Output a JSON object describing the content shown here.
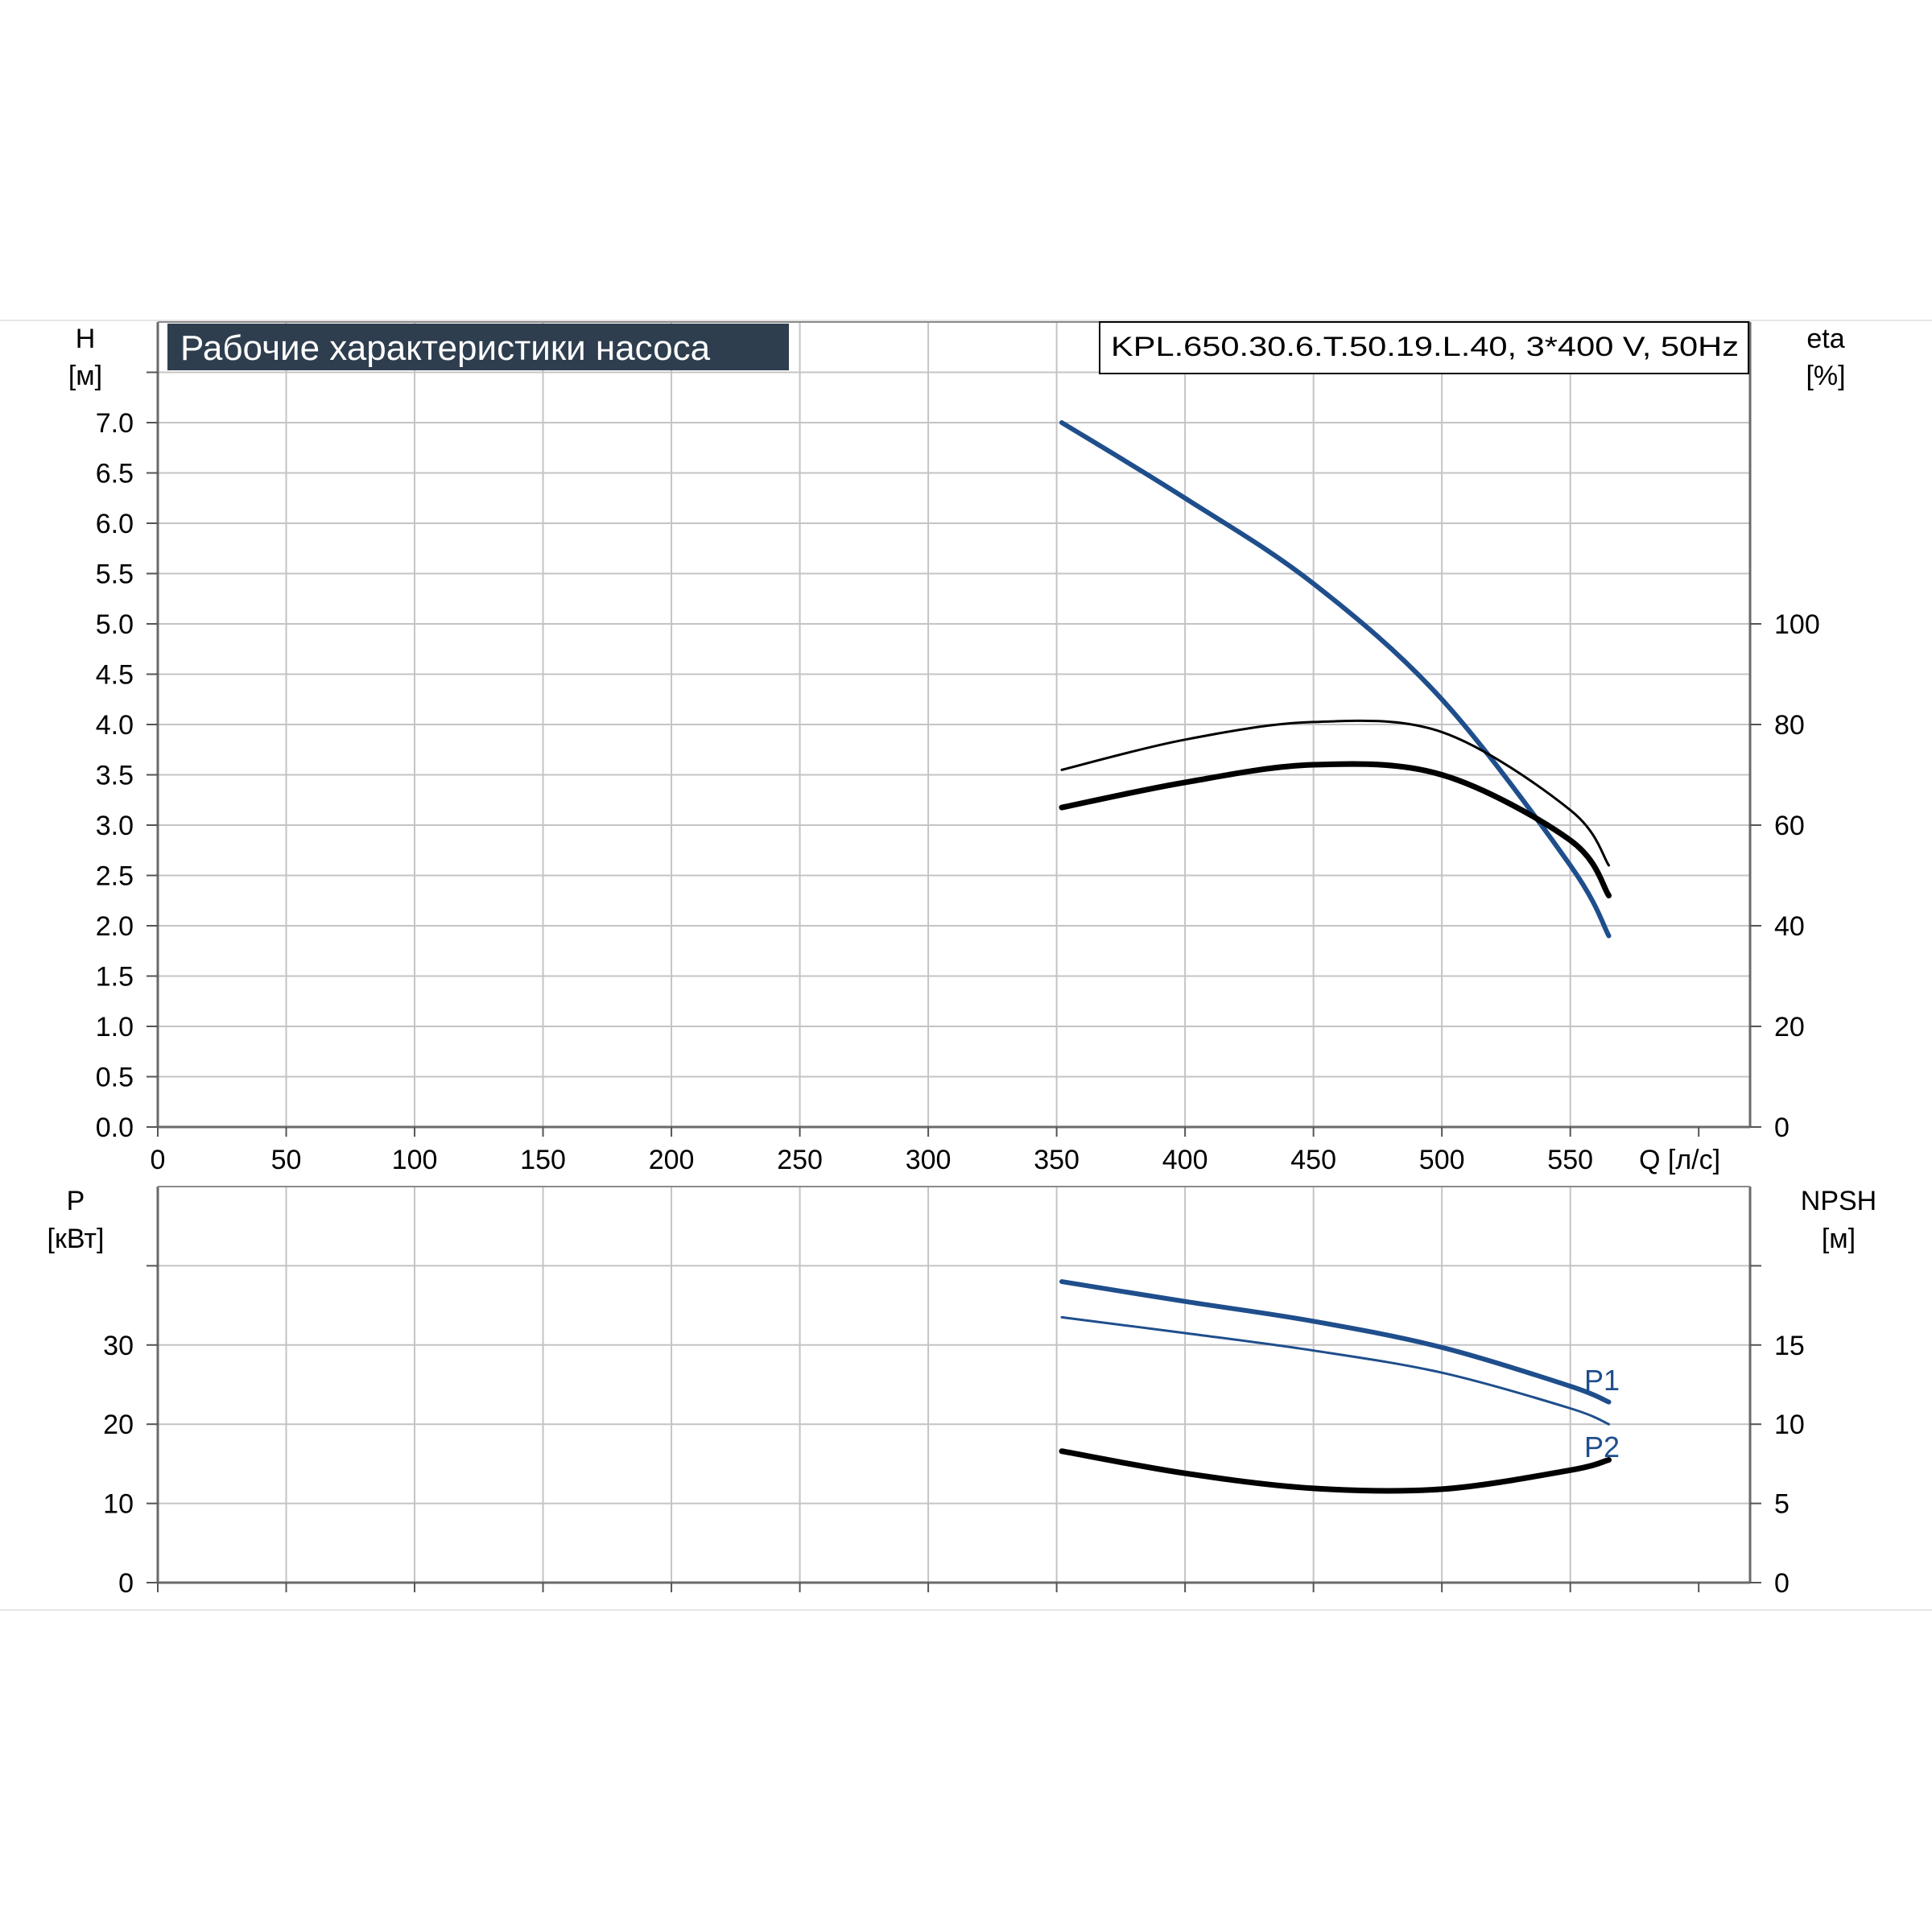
{
  "header": {
    "title": "Рабочие характеристики насоса",
    "model": "KPL.650.30.6.T.50.19.L.40, 3*400 V, 50Hz"
  },
  "colors": {
    "blue": "#1f4e8c",
    "black": "#000000",
    "grid": "#c4c4c4",
    "title_bg": "#2e3e4f",
    "title_fg": "#ffffff"
  },
  "chart_data": [
    {
      "type": "line",
      "name": "head-efficiency",
      "x_axis": {
        "label": "Q [л/с]",
        "range": [
          0,
          620
        ],
        "ticks": [
          0,
          50,
          100,
          150,
          200,
          250,
          300,
          350,
          400,
          450,
          500,
          550
        ],
        "tick_labels": [
          "0",
          "50",
          "100",
          "150",
          "200",
          "250",
          "300",
          "350",
          "400",
          "450",
          "500",
          "550"
        ]
      },
      "y_axis_left": {
        "label_line1": "H",
        "label_line2": "[м]",
        "range": [
          0,
          8.0
        ],
        "ticks": [
          0,
          0.5,
          1,
          1.5,
          2,
          2.5,
          3,
          3.5,
          4,
          4.5,
          5,
          5.5,
          6,
          6.5,
          7,
          7.5
        ],
        "tick_labels": [
          "0.0",
          "0.5",
          "1.0",
          "1.5",
          "2.0",
          "2.5",
          "3.0",
          "3.5",
          "4.0",
          "4.5",
          "5.0",
          "5.5",
          "6.0",
          "6.5",
          "7.0",
          ""
        ]
      },
      "y_axis_right": {
        "label_line1": "eta",
        "label_line2": "[%]",
        "range": [
          0,
          160
        ],
        "ticks": [
          0,
          20,
          40,
          60,
          80,
          100
        ],
        "tick_labels": [
          "0",
          "20",
          "40",
          "60",
          "80",
          "100"
        ]
      },
      "series": [
        {
          "key": "head",
          "axis": "left",
          "color": "#1f4e8c",
          "width": 6,
          "x": [
            352,
            400,
            450,
            500,
            550,
            565
          ],
          "y": [
            7.0,
            6.25,
            5.4,
            4.25,
            2.6,
            1.9
          ]
        },
        {
          "key": "eta-thin",
          "axis": "right",
          "color": "#000000",
          "width": 3,
          "x": [
            352,
            400,
            450,
            500,
            550,
            565
          ],
          "y": [
            71,
            77,
            80.5,
            78.5,
            63,
            52
          ]
        },
        {
          "key": "eta-thick",
          "axis": "right",
          "color": "#000000",
          "width": 7,
          "x": [
            352,
            400,
            450,
            500,
            550,
            565
          ],
          "y": [
            63.5,
            68.5,
            72,
            70,
            57,
            46
          ]
        }
      ],
      "grid": true
    },
    {
      "type": "line",
      "name": "power-npsh",
      "x_axis": {
        "label": "",
        "range": [
          0,
          620
        ],
        "ticks": [
          0,
          50,
          100,
          150,
          200,
          250,
          300,
          350,
          400,
          450,
          500,
          550
        ]
      },
      "y_axis_left": {
        "label_line1": "P",
        "label_line2": "[кВт]",
        "range": [
          0,
          50
        ],
        "ticks": [
          0,
          10,
          20,
          30,
          40
        ],
        "tick_labels": [
          "0",
          "10",
          "20",
          "30",
          ""
        ]
      },
      "y_axis_right": {
        "label_line1": "NPSH",
        "label_line2": "[м]",
        "range": [
          0,
          25
        ],
        "ticks": [
          0,
          5,
          10,
          15,
          20
        ],
        "tick_labels": [
          "0",
          "5",
          "10",
          "15",
          ""
        ]
      },
      "series": [
        {
          "key": "P1",
          "name": "P1",
          "axis": "left",
          "color": "#1f4e8c",
          "width": 6,
          "x": [
            352,
            400,
            450,
            500,
            550,
            565
          ],
          "y": [
            38,
            35.5,
            33,
            29.7,
            24.8,
            22.8
          ]
        },
        {
          "key": "P2",
          "name": "P2",
          "axis": "left",
          "color": "#1f4e8c",
          "width": 3,
          "x": [
            352,
            400,
            450,
            500,
            550,
            565
          ],
          "y": [
            33.5,
            31.5,
            29.3,
            26.5,
            22,
            20
          ]
        },
        {
          "key": "npsh",
          "axis": "right",
          "color": "#000000",
          "width": 7,
          "x": [
            352,
            400,
            450,
            500,
            550,
            565
          ],
          "y": [
            8.3,
            6.9,
            5.95,
            5.9,
            7.1,
            7.75
          ]
        }
      ],
      "grid": true
    }
  ]
}
